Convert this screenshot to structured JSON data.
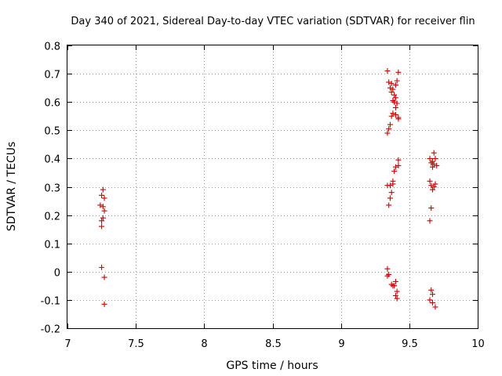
{
  "chart_data": {
    "type": "scatter",
    "title": "Day 340 of 2021, Sidereal Day-to-day VTEC variation (SDTVAR) for receiver flin",
    "xlabel": "GPS time / hours",
    "ylabel": "SDTVAR / TECUs",
    "xlim": [
      7,
      10
    ],
    "ylim": [
      -0.2,
      0.8
    ],
    "xticks": [
      7,
      7.5,
      8,
      8.5,
      9,
      9.5,
      10
    ],
    "xtick_labels": [
      "7",
      "7.5",
      "8",
      "8.5",
      "9",
      "9.5",
      "10"
    ],
    "yticks": [
      -0.2,
      -0.1,
      0,
      0.1,
      0.2,
      0.3,
      0.4,
      0.5,
      0.6,
      0.7,
      0.8
    ],
    "ytick_labels": [
      "-0.2",
      "-0.1",
      "0",
      "0.1",
      "0.2",
      "0.3",
      "0.4",
      "0.5",
      "0.6",
      "0.7",
      "0.8"
    ],
    "grid": true,
    "marker": "+",
    "color": "#cc0000",
    "series": [
      {
        "name": "SDTVAR",
        "points": [
          [
            7.26,
            0.29
          ],
          [
            7.25,
            0.27
          ],
          [
            7.27,
            0.26
          ],
          [
            7.24,
            0.235
          ],
          [
            7.26,
            0.23
          ],
          [
            7.27,
            0.215
          ],
          [
            7.26,
            0.19
          ],
          [
            7.25,
            0.18
          ],
          [
            7.25,
            0.16
          ],
          [
            7.25,
            0.015
          ],
          [
            7.27,
            -0.02
          ],
          [
            7.27,
            -0.115
          ],
          [
            9.34,
            0.71
          ],
          [
            9.42,
            0.705
          ],
          [
            9.35,
            0.67
          ],
          [
            9.41,
            0.675
          ],
          [
            9.37,
            0.665
          ],
          [
            9.4,
            0.66
          ],
          [
            9.36,
            0.65
          ],
          [
            9.38,
            0.645
          ],
          [
            9.37,
            0.635
          ],
          [
            9.39,
            0.625
          ],
          [
            9.4,
            0.615
          ],
          [
            9.38,
            0.605
          ],
          [
            9.39,
            0.6
          ],
          [
            9.41,
            0.595
          ],
          [
            9.4,
            0.58
          ],
          [
            9.38,
            0.56
          ],
          [
            9.4,
            0.555
          ],
          [
            9.37,
            0.55
          ],
          [
            9.42,
            0.545
          ],
          [
            9.42,
            0.54
          ],
          [
            9.36,
            0.52
          ],
          [
            9.35,
            0.505
          ],
          [
            9.34,
            0.49
          ],
          [
            9.42,
            0.395
          ],
          [
            9.42,
            0.375
          ],
          [
            9.4,
            0.37
          ],
          [
            9.39,
            0.355
          ],
          [
            9.38,
            0.32
          ],
          [
            9.38,
            0.31
          ],
          [
            9.34,
            0.305
          ],
          [
            9.36,
            0.305
          ],
          [
            9.37,
            0.28
          ],
          [
            9.36,
            0.26
          ],
          [
            9.35,
            0.235
          ],
          [
            9.34,
            0.01
          ],
          [
            9.35,
            -0.01
          ],
          [
            9.34,
            -0.015
          ],
          [
            9.4,
            -0.035
          ],
          [
            9.37,
            -0.045
          ],
          [
            9.38,
            -0.05
          ],
          [
            9.39,
            -0.05
          ],
          [
            9.41,
            -0.07
          ],
          [
            9.4,
            -0.085
          ],
          [
            9.41,
            -0.095
          ],
          [
            9.68,
            0.42
          ],
          [
            9.65,
            0.4
          ],
          [
            9.69,
            0.4
          ],
          [
            9.67,
            0.39
          ],
          [
            9.66,
            0.385
          ],
          [
            9.68,
            0.38
          ],
          [
            9.7,
            0.375
          ],
          [
            9.67,
            0.37
          ],
          [
            9.65,
            0.32
          ],
          [
            9.69,
            0.31
          ],
          [
            9.66,
            0.305
          ],
          [
            9.68,
            0.3
          ],
          [
            9.67,
            0.29
          ],
          [
            9.66,
            0.225
          ],
          [
            9.65,
            0.18
          ],
          [
            9.66,
            -0.065
          ],
          [
            9.67,
            -0.08
          ],
          [
            9.65,
            -0.1
          ],
          [
            9.67,
            -0.11
          ],
          [
            9.69,
            -0.125
          ]
        ]
      }
    ]
  }
}
